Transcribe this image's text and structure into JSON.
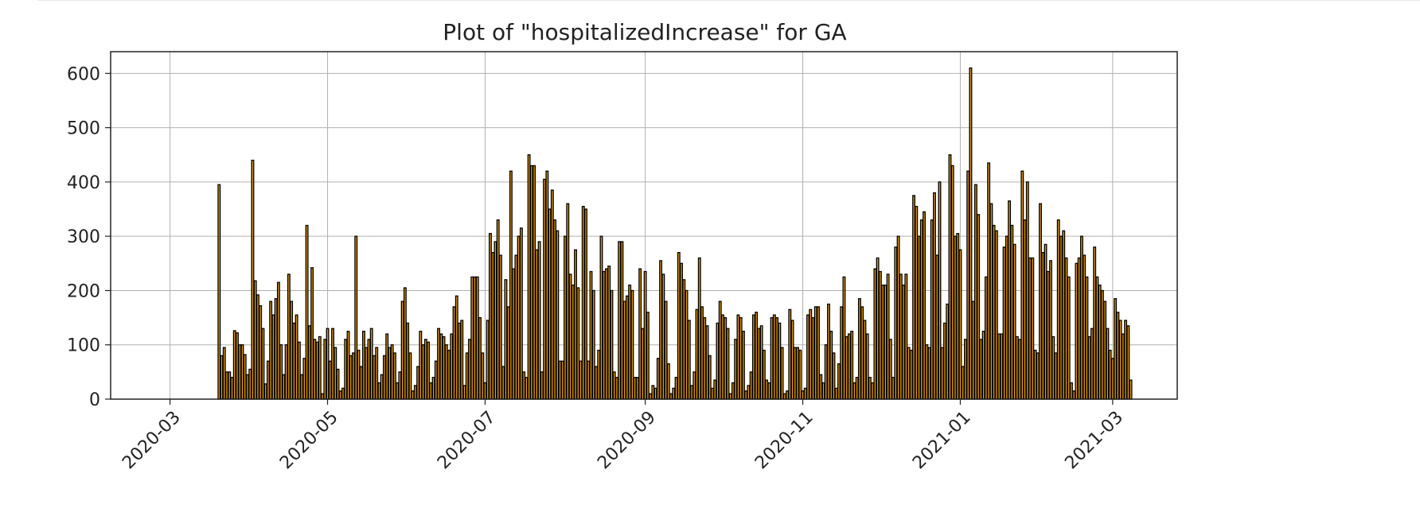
{
  "chart_data": {
    "type": "bar",
    "title": "Plot of \"hospitalizedIncrease\" for GA",
    "xlabel": "",
    "ylabel": "",
    "x_tick_labels": [
      "2020-03",
      "2020-05",
      "2020-07",
      "2020-09",
      "2020-11",
      "2021-01",
      "2021-03"
    ],
    "x_tick_dates": [
      "2020-03-01",
      "2020-05-01",
      "2020-07-01",
      "2020-09-01",
      "2020-11-01",
      "2021-01-01",
      "2021-03-01"
    ],
    "y_ticks": [
      0,
      100,
      200,
      300,
      400,
      500,
      600
    ],
    "xlim": [
      "2020-02-07",
      "2021-03-26"
    ],
    "ylim": [
      0,
      640
    ],
    "grid": true,
    "colors": {
      "bar_fill": "#e59b12",
      "bar_edge": "#000000",
      "grid": "#b0b0b0",
      "axes": "#222222"
    },
    "series": [
      {
        "start_date": "2020-03-20",
        "values": [
          395,
          80,
          95,
          50,
          50,
          40,
          126,
          122,
          100,
          100,
          82,
          45,
          55,
          440,
          218,
          192,
          172,
          130,
          28,
          70,
          180,
          155,
          185,
          215,
          100,
          45,
          100,
          230,
          180,
          140,
          155,
          105,
          45,
          75,
          320,
          135,
          242,
          110,
          105,
          115,
          10,
          110,
          130,
          70,
          130,
          95,
          55,
          15,
          20,
          110,
          125,
          80,
          85,
          300,
          90,
          60,
          125,
          95,
          110,
          130,
          80,
          95,
          30,
          45,
          80,
          120,
          95,
          100,
          85,
          30,
          50,
          180,
          205,
          140,
          85,
          15,
          25,
          60,
          125,
          100,
          110,
          105,
          30,
          40,
          70,
          130,
          120,
          115,
          100,
          90,
          120,
          170,
          190,
          140,
          145,
          25,
          85,
          110,
          225,
          225,
          225,
          150,
          85,
          30,
          145,
          305,
          270,
          290,
          330,
          265,
          60,
          220,
          170,
          420,
          240,
          265,
          300,
          315,
          50,
          40,
          450,
          430,
          430,
          275,
          290,
          50,
          405,
          420,
          350,
          385,
          330,
          310,
          70,
          70,
          300,
          360,
          230,
          210,
          275,
          205,
          70,
          355,
          350,
          70,
          235,
          200,
          60,
          90,
          300,
          235,
          240,
          245,
          200,
          50,
          40,
          290,
          290,
          180,
          190,
          210,
          200,
          40,
          40,
          240,
          130,
          235,
          160,
          10,
          25,
          20,
          75,
          255,
          230,
          180,
          65,
          10,
          20,
          40,
          270,
          250,
          220,
          200,
          145,
          25,
          50,
          165,
          260,
          170,
          150,
          135,
          80,
          20,
          35,
          140,
          180,
          155,
          150,
          130,
          10,
          30,
          110,
          155,
          150,
          125,
          15,
          25,
          50,
          155,
          160,
          130,
          135,
          90,
          35,
          30,
          150,
          155,
          150,
          140,
          95,
          10,
          15,
          165,
          145,
          95,
          95,
          90,
          15,
          20,
          155,
          165,
          150,
          170,
          170,
          45,
          30,
          100,
          175,
          125,
          85,
          20,
          65,
          170,
          225,
          115,
          120,
          125,
          30,
          40,
          185,
          170,
          145,
          120,
          40,
          30,
          240,
          260,
          235,
          210,
          210,
          230,
          110,
          40,
          280,
          300,
          230,
          210,
          230,
          95,
          90,
          375,
          355,
          300,
          330,
          345,
          100,
          95,
          330,
          380,
          265,
          400,
          95,
          140,
          175,
          450,
          430,
          300,
          305,
          275,
          60,
          110,
          420,
          610,
          180,
          395,
          340,
          110,
          125,
          225,
          435,
          360,
          320,
          310,
          120,
          120,
          280,
          300,
          365,
          320,
          285,
          115,
          110,
          420,
          330,
          400,
          260,
          260,
          90,
          85,
          360,
          270,
          285,
          235,
          255,
          115,
          85,
          330,
          300,
          310,
          260,
          225,
          30,
          15,
          250,
          260,
          300,
          265,
          225,
          115,
          130,
          280,
          225,
          210,
          200,
          180,
          130,
          90,
          75,
          185,
          160,
          145,
          120,
          145,
          135,
          35
        ]
      }
    ]
  }
}
